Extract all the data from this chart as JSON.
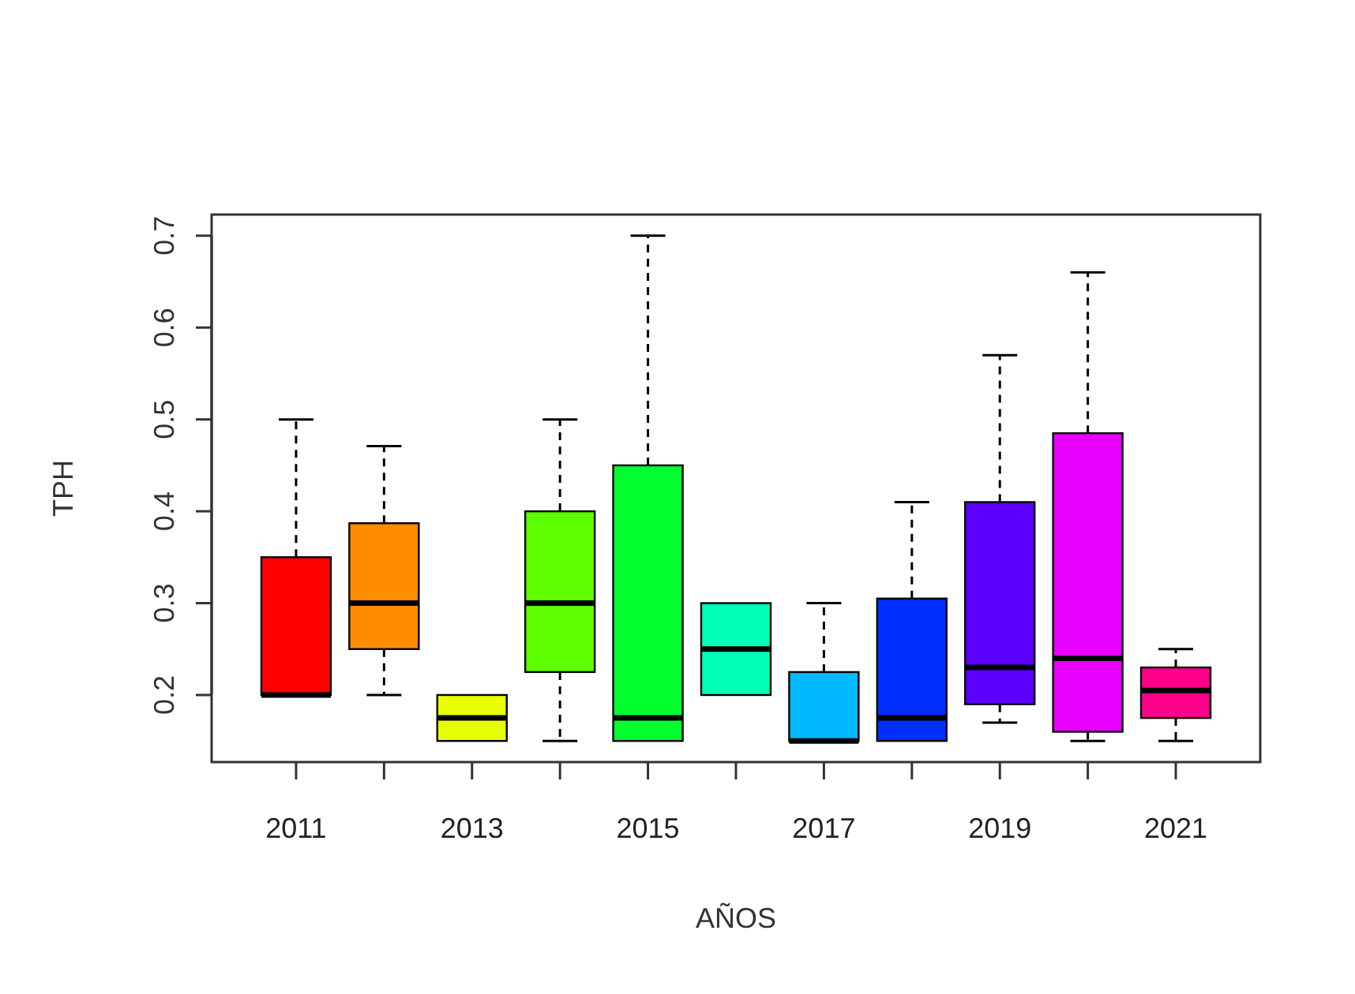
{
  "chart_data": {
    "type": "box",
    "xlabel": "AÑOS",
    "ylabel": "TPH",
    "categories": [
      "2011",
      null,
      "2013",
      null,
      "2015",
      null,
      "2017",
      null,
      "2019",
      null,
      "2021"
    ],
    "colors": [
      "#ff0000",
      "#ff8b00",
      "#e8ff00",
      "#5dff00",
      "#00ff2e",
      "#00ffb9",
      "#00b9ff",
      "#002eff",
      "#5d00ff",
      "#e800ff",
      "#ff008b"
    ],
    "boxes": [
      {
        "low": 0.2,
        "q1": 0.2,
        "median": 0.2,
        "q3": 0.35,
        "high": 0.5
      },
      {
        "low": 0.2,
        "q1": 0.25,
        "median": 0.3,
        "q3": 0.387,
        "high": 0.471
      },
      {
        "low": 0.15,
        "q1": 0.15,
        "median": 0.175,
        "q3": 0.2,
        "high": 0.2
      },
      {
        "low": 0.15,
        "q1": 0.225,
        "median": 0.3,
        "q3": 0.4,
        "high": 0.5
      },
      {
        "low": 0.15,
        "q1": 0.15,
        "median": 0.175,
        "q3": 0.45,
        "high": 0.7
      },
      {
        "low": 0.2,
        "q1": 0.2,
        "median": 0.25,
        "q3": 0.3,
        "high": 0.3
      },
      {
        "low": 0.15,
        "q1": 0.15,
        "median": 0.15,
        "q3": 0.225,
        "high": 0.3
      },
      {
        "low": 0.15,
        "q1": 0.15,
        "median": 0.175,
        "q3": 0.305,
        "high": 0.41
      },
      {
        "low": 0.17,
        "q1": 0.19,
        "median": 0.23,
        "q3": 0.41,
        "high": 0.57
      },
      {
        "low": 0.15,
        "q1": 0.16,
        "median": 0.24,
        "q3": 0.485,
        "high": 0.66
      },
      {
        "low": 0.15,
        "q1": 0.175,
        "median": 0.205,
        "q3": 0.23,
        "high": 0.25
      }
    ],
    "ylim": [
      0.127,
      0.723
    ],
    "yticks": [
      0.2,
      0.3,
      0.4,
      0.5,
      0.6,
      0.7
    ],
    "grid": false
  }
}
